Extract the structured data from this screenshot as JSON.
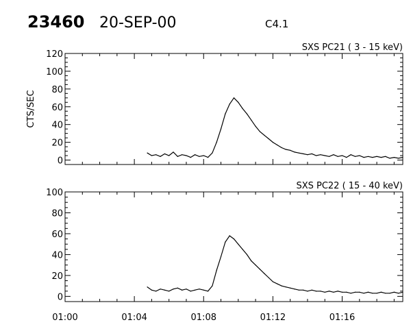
{
  "header": {
    "event_id": "23460",
    "date": "20-SEP-00",
    "class": "C4.1"
  },
  "chart_data": [
    {
      "type": "line",
      "title": "SXS PC21  (  3 - 15 keV)",
      "ylabel": "CTS/SEC",
      "xlabel": "",
      "ylim": [
        -5,
        120
      ],
      "yticks": [
        "0",
        "20",
        "40",
        "60",
        "80",
        "100",
        "120"
      ],
      "xlim": [
        "01:00:00",
        "01:19:30"
      ],
      "xticks": [
        "01:00",
        "01:04",
        "01:08",
        "01:12",
        "01:16"
      ],
      "show_xtick_labels": false,
      "grid": false,
      "color": "#000000",
      "x": [
        "01:04:45",
        "01:05:00",
        "01:05:15",
        "01:05:30",
        "01:05:45",
        "01:06:00",
        "01:06:15",
        "01:06:30",
        "01:06:45",
        "01:07:00",
        "01:07:15",
        "01:07:30",
        "01:07:45",
        "01:08:00",
        "01:08:15",
        "01:08:30",
        "01:08:45",
        "01:09:00",
        "01:09:15",
        "01:09:30",
        "01:09:45",
        "01:10:00",
        "01:10:15",
        "01:10:30",
        "01:10:45",
        "01:11:00",
        "01:11:15",
        "01:11:30",
        "01:11:45",
        "01:12:00",
        "01:12:15",
        "01:12:30",
        "01:12:45",
        "01:13:00",
        "01:13:15",
        "01:13:30",
        "01:13:45",
        "01:14:00",
        "01:14:15",
        "01:14:30",
        "01:14:45",
        "01:15:00",
        "01:15:15",
        "01:15:30",
        "01:15:45",
        "01:16:00",
        "01:16:15",
        "01:16:30",
        "01:16:45",
        "01:17:00",
        "01:17:15",
        "01:17:30",
        "01:17:45",
        "01:18:00",
        "01:18:15",
        "01:18:30",
        "01:18:45",
        "01:19:00",
        "01:19:15",
        "01:19:30"
      ],
      "values": [
        8,
        5,
        6,
        4,
        7,
        5,
        9,
        4,
        6,
        5,
        3,
        6,
        4,
        5,
        3,
        8,
        20,
        35,
        52,
        63,
        70,
        65,
        58,
        52,
        45,
        38,
        32,
        28,
        24,
        20,
        17,
        14,
        12,
        11,
        9,
        8,
        7,
        6,
        7,
        5,
        6,
        5,
        4,
        6,
        4,
        5,
        3,
        6,
        4,
        5,
        3,
        4,
        3,
        4,
        3,
        4,
        2,
        3,
        2,
        3
      ]
    },
    {
      "type": "line",
      "title": "SXS PC22  ( 15 - 40 keV)",
      "ylabel": "",
      "xlabel": "",
      "ylim": [
        -5,
        100
      ],
      "yticks": [
        "0",
        "20",
        "40",
        "60",
        "80",
        "100"
      ],
      "xlim": [
        "01:00:00",
        "01:19:30"
      ],
      "xticks": [
        "01:00",
        "01:04",
        "01:08",
        "01:12",
        "01:16"
      ],
      "show_xtick_labels": true,
      "grid": false,
      "color": "#000000",
      "x": [
        "01:04:45",
        "01:05:00",
        "01:05:15",
        "01:05:30",
        "01:05:45",
        "01:06:00",
        "01:06:15",
        "01:06:30",
        "01:06:45",
        "01:07:00",
        "01:07:15",
        "01:07:30",
        "01:07:45",
        "01:08:00",
        "01:08:15",
        "01:08:30",
        "01:08:45",
        "01:09:00",
        "01:09:15",
        "01:09:30",
        "01:09:45",
        "01:10:00",
        "01:10:15",
        "01:10:30",
        "01:10:45",
        "01:11:00",
        "01:11:15",
        "01:11:30",
        "01:11:45",
        "01:12:00",
        "01:12:15",
        "01:12:30",
        "01:12:45",
        "01:13:00",
        "01:13:15",
        "01:13:30",
        "01:13:45",
        "01:14:00",
        "01:14:15",
        "01:14:30",
        "01:14:45",
        "01:15:00",
        "01:15:15",
        "01:15:30",
        "01:15:45",
        "01:16:00",
        "01:16:15",
        "01:16:30",
        "01:16:45",
        "01:17:00",
        "01:17:15",
        "01:17:30",
        "01:17:45",
        "01:18:00",
        "01:18:15",
        "01:18:30",
        "01:18:45",
        "01:19:00",
        "01:19:15",
        "01:19:30"
      ],
      "values": [
        9,
        6,
        5,
        7,
        6,
        5,
        7,
        8,
        6,
        7,
        5,
        6,
        7,
        6,
        5,
        10,
        25,
        38,
        52,
        58,
        55,
        50,
        45,
        40,
        34,
        30,
        26,
        22,
        18,
        14,
        12,
        10,
        9,
        8,
        7,
        6,
        6,
        5,
        6,
        5,
        5,
        4,
        5,
        4,
        5,
        4,
        4,
        3,
        4,
        4,
        3,
        4,
        3,
        3,
        4,
        3,
        3,
        4,
        3,
        4
      ]
    }
  ]
}
